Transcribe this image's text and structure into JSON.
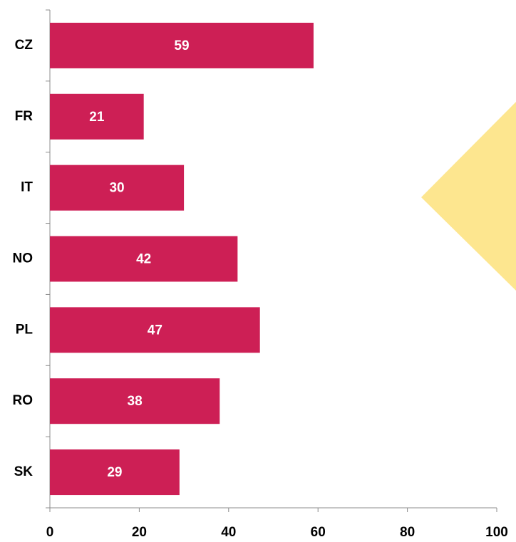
{
  "chart_data": {
    "type": "bar",
    "orientation": "horizontal",
    "categories": [
      "CZ",
      "FR",
      "IT",
      "NO",
      "PL",
      "RO",
      "SK"
    ],
    "values": [
      59,
      21,
      30,
      42,
      47,
      38,
      29
    ],
    "color": "#cd1f55",
    "xlim": [
      0,
      100
    ],
    "xticks": [
      0,
      20,
      40,
      60,
      80,
      100
    ]
  }
}
